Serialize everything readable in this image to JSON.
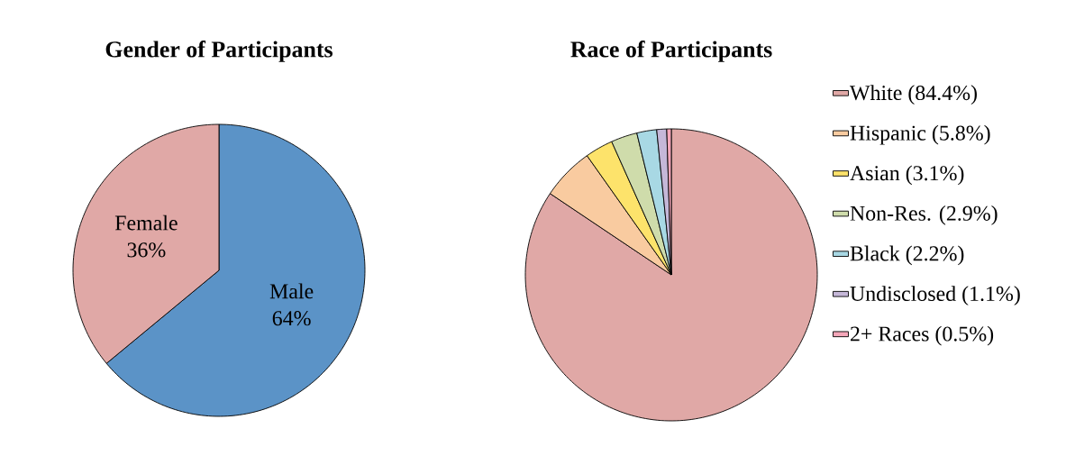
{
  "chart_data": [
    {
      "type": "pie",
      "title": "Gender of Participants",
      "categories": [
        "Male",
        "Female"
      ],
      "values": [
        64,
        36
      ],
      "colors": [
        "#5b93c7",
        "#e0a8a6"
      ],
      "value_labels": [
        "64%",
        "36%"
      ]
    },
    {
      "type": "pie",
      "title": "Race of Participants",
      "categories": [
        "White (84.4%)",
        "Hispanic (5.8%)",
        "Asian (3.1%)",
        "Non-Res. (2.9%)",
        "Black (2.2%)",
        "Undisclosed (1.1%)",
        "2+ Races (0.5%)"
      ],
      "values": [
        84.4,
        5.8,
        3.1,
        2.9,
        2.2,
        1.1,
        0.5
      ],
      "colors": [
        "#e0a8a6",
        "#f9cba0",
        "#fde36b",
        "#cfdcab",
        "#a8d8e4",
        "#c5b7d8",
        "#f4a6b8"
      ],
      "legend": "right"
    }
  ]
}
